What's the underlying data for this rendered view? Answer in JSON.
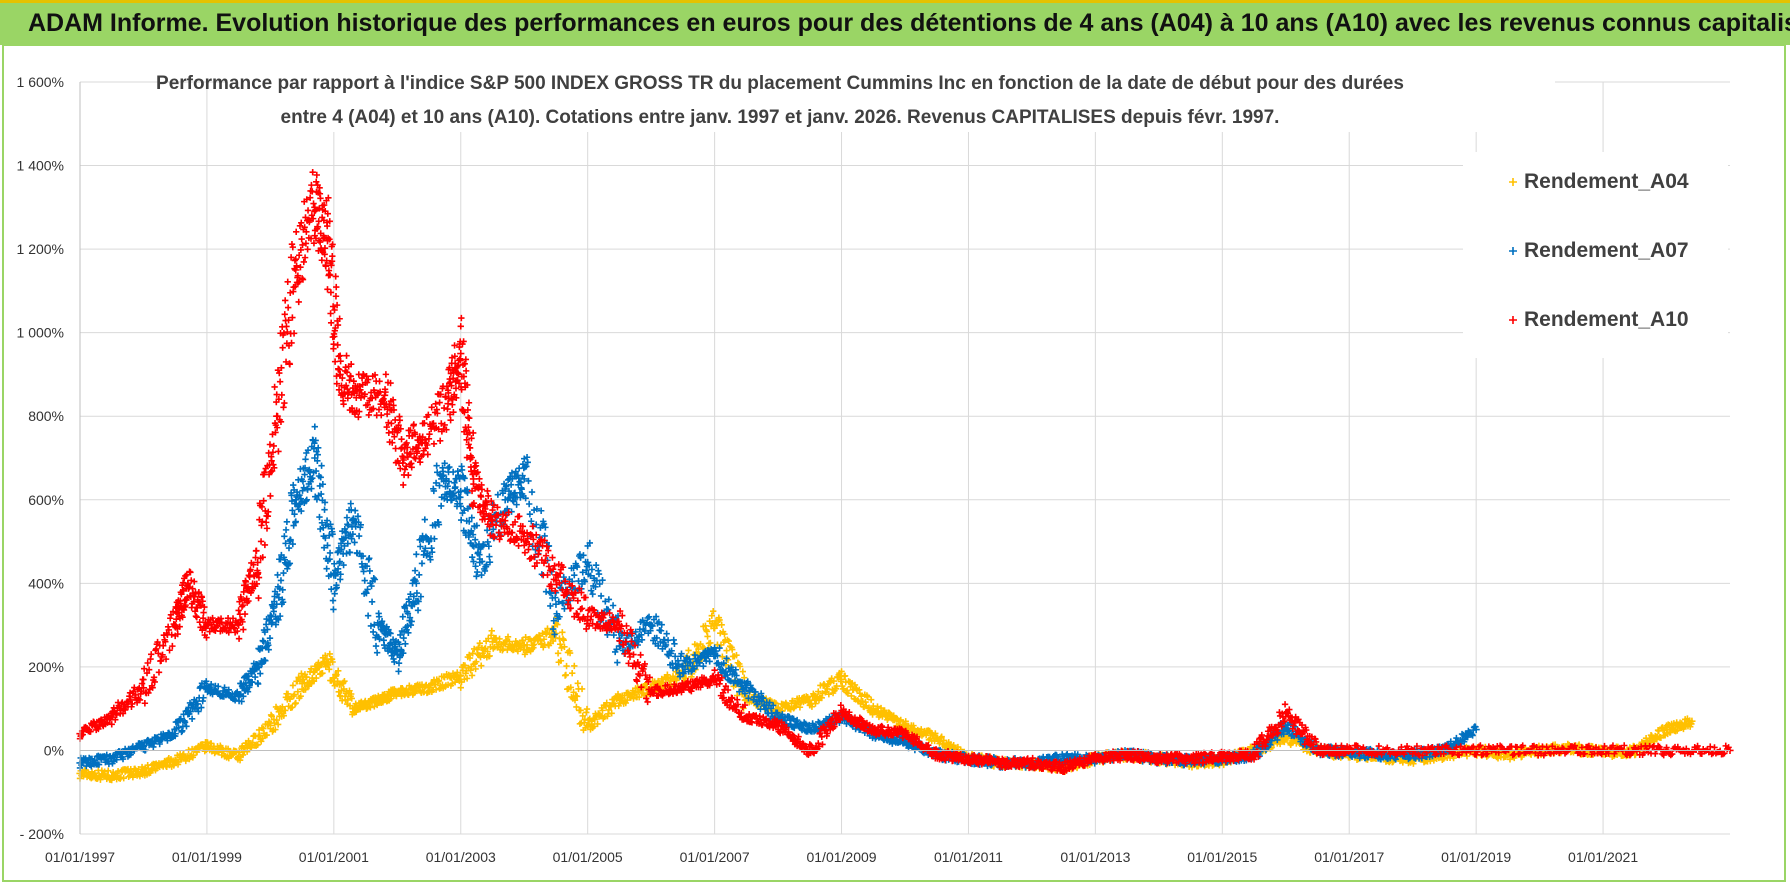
{
  "header": {
    "title": "ADAM Informe. Evolution historique des performances en euros pour des détentions de 4 ans (A04) à 10 ans (A10) avec les revenus connus capitalisés"
  },
  "colors": {
    "header_band": "#9ad565",
    "A04": "#ffc000",
    "A07": "#0070c0",
    "A10": "#ff0000",
    "grid": "#d9d9d9"
  },
  "chart_data": {
    "type": "scatter",
    "title_line1": "Performance par rapport à l'indice S&P 500 INDEX GROSS TR  du placement Cummins Inc en fonction de la date de début pour des durées",
    "title_line2": "entre 4 (A04) et 10 ans (A10).  Cotations entre janv. 1997 et janv. 2026. Revenus CAPITALISES depuis févr. 1997.",
    "xlabel": "",
    "ylabel": "",
    "x_range": [
      1997.0,
      2023.0
    ],
    "ylim": [
      -200,
      1600
    ],
    "y_ticks": [
      -200,
      0,
      200,
      400,
      600,
      800,
      1000,
      1200,
      1400,
      1600
    ],
    "y_tick_labels": [
      "- 200%",
      "0%",
      "200%",
      "400%",
      "600%",
      "800%",
      "1 000%",
      "1 200%",
      "1 400%",
      "1 600%"
    ],
    "x_ticks": [
      1997,
      1999,
      2001,
      2003,
      2005,
      2007,
      2009,
      2011,
      2013,
      2015,
      2017,
      2019,
      2021
    ],
    "x_tick_labels": [
      "01/01/1997",
      "01/01/1999",
      "01/01/2001",
      "01/01/2003",
      "01/01/2005",
      "01/01/2007",
      "01/01/2009",
      "01/01/2011",
      "01/01/2013",
      "01/01/2015",
      "01/01/2017",
      "01/01/2019",
      "01/01/2021"
    ],
    "legend_position": "top-right",
    "series": [
      {
        "name": "Rendement_A04",
        "color": "#ffc000",
        "x": [
          1997.0,
          1997.5,
          1998.0,
          1998.5,
          1999.0,
          1999.5,
          2000.0,
          2000.5,
          2000.9,
          2001.3,
          2001.7,
          2002.0,
          2002.5,
          2003.0,
          2003.5,
          2004.0,
          2004.5,
          2005.0,
          2005.5,
          2006.0,
          2006.5,
          2007.0,
          2007.5,
          2008.0,
          2008.5,
          2009.0,
          2009.5,
          2010.0,
          2010.5,
          2011.0,
          2011.5,
          2012.0,
          2012.5,
          2013.0,
          2013.5,
          2014.0,
          2014.5,
          2015.0,
          2015.5,
          2016.0,
          2016.5,
          2017.0,
          2017.5,
          2018.0,
          2018.5,
          2019.0,
          2019.5,
          2020.0,
          2020.5,
          2021.0,
          2021.5,
          2022.0,
          2022.4
        ],
        "y": [
          -55,
          -60,
          -50,
          -25,
          10,
          -15,
          60,
          160,
          210,
          100,
          120,
          140,
          150,
          180,
          260,
          250,
          280,
          60,
          120,
          150,
          180,
          300,
          130,
          100,
          120,
          170,
          100,
          60,
          30,
          -20,
          -30,
          -30,
          -40,
          -20,
          -10,
          -20,
          -30,
          -25,
          0,
          30,
          0,
          -10,
          -15,
          -20,
          -10,
          0,
          -10,
          0,
          5,
          -5,
          0,
          50,
          70
        ]
      },
      {
        "name": "Rendement_A07",
        "color": "#0070c0",
        "x": [
          1997.0,
          1997.5,
          1998.0,
          1998.5,
          1999.0,
          1999.5,
          1999.8,
          2000.1,
          2000.4,
          2000.7,
          2001.0,
          2001.3,
          2001.7,
          2002.0,
          2002.3,
          2002.7,
          2003.0,
          2003.3,
          2003.7,
          2004.0,
          2004.5,
          2005.0,
          2005.5,
          2006.0,
          2006.5,
          2007.0,
          2007.5,
          2008.0,
          2008.5,
          2009.0,
          2009.5,
          2010.0,
          2010.5,
          2011.0,
          2011.5,
          2012.0,
          2012.5,
          2013.0,
          2013.5,
          2014.0,
          2014.5,
          2015.0,
          2015.5,
          2016.0,
          2016.5,
          2017.0,
          2017.5,
          2018.0,
          2018.5,
          2019.0
        ],
        "y": [
          -30,
          -20,
          10,
          40,
          150,
          130,
          200,
          350,
          600,
          700,
          420,
          550,
          300,
          230,
          400,
          650,
          620,
          450,
          600,
          650,
          350,
          450,
          250,
          300,
          200,
          230,
          150,
          80,
          50,
          80,
          40,
          20,
          -10,
          -20,
          -30,
          -30,
          -20,
          -20,
          -10,
          -20,
          -25,
          -20,
          -10,
          60,
          0,
          -5,
          -10,
          -10,
          0,
          50
        ]
      },
      {
        "name": "Rendement_A10",
        "color": "#ff0000",
        "x": [
          1997.0,
          1997.5,
          1998.0,
          1998.5,
          1998.7,
          1999.0,
          1999.5,
          1999.8,
          2000.1,
          2000.4,
          2000.7,
          2000.9,
          2001.1,
          2001.4,
          2001.8,
          2002.1,
          2002.4,
          2002.8,
          2003.0,
          2003.2,
          2003.5,
          2004.0,
          2004.5,
          2005.0,
          2005.5,
          2006.0,
          2006.5,
          2007.0,
          2007.5,
          2008.0,
          2008.5,
          2009.0,
          2009.5,
          2010.0,
          2010.5,
          2011.0,
          2011.5,
          2012.0,
          2012.5,
          2013.0,
          2013.5,
          2014.0,
          2014.5,
          2015.0,
          2015.5,
          2016.0,
          2016.5,
          2017.0,
          2018.0,
          2019.0,
          2020.0,
          2021.0,
          2022.0,
          2023.0
        ],
        "y": [
          40,
          80,
          150,
          300,
          400,
          300,
          300,
          450,
          800,
          1150,
          1300,
          1220,
          900,
          850,
          850,
          700,
          750,
          830,
          950,
          650,
          550,
          520,
          420,
          320,
          300,
          140,
          150,
          170,
          80,
          60,
          0,
          90,
          50,
          40,
          -10,
          -20,
          -30,
          -30,
          -40,
          -20,
          -10,
          -20,
          -20,
          -15,
          -10,
          90,
          0,
          0,
          0,
          0,
          0,
          0,
          0,
          0
        ]
      }
    ]
  }
}
